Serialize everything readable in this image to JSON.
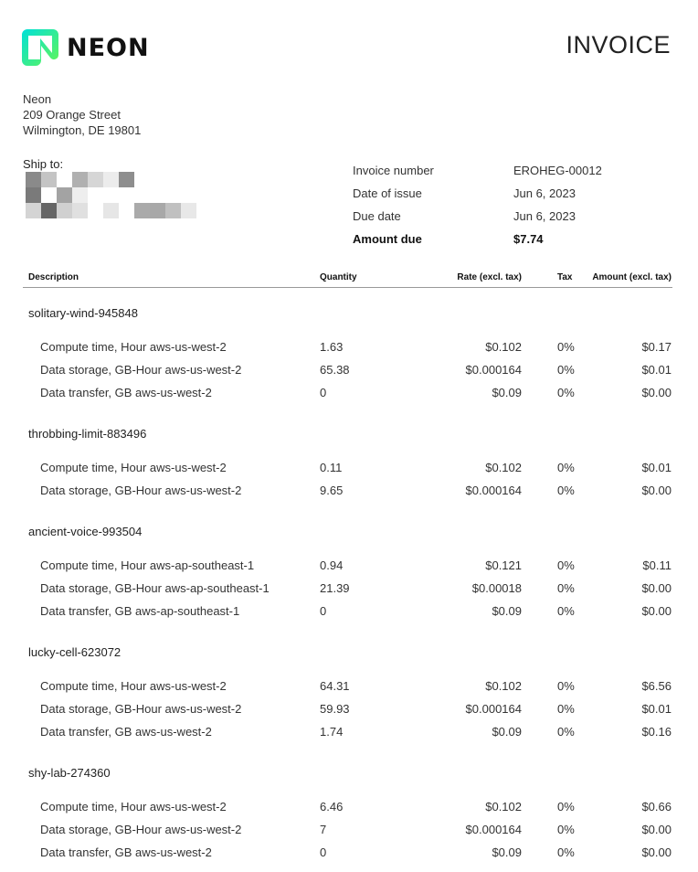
{
  "brand": {
    "name": "NEON",
    "logo_colors": [
      "#00E0D9",
      "#63F655"
    ]
  },
  "title": "INVOICE",
  "from": {
    "lines": [
      "Neon",
      "209 Orange Street",
      "Wilmington, DE 19801"
    ]
  },
  "ship_to": {
    "label": "Ship to:"
  },
  "meta": [
    {
      "label": "Invoice number",
      "value": "EROHEG-00012"
    },
    {
      "label": "Date of issue",
      "value": "Jun 6, 2023"
    },
    {
      "label": "Due date",
      "value": "Jun 6, 2023"
    },
    {
      "label": "Amount due",
      "value": "$7.74"
    }
  ],
  "table": {
    "headers": [
      "Description",
      "Quantity",
      "Rate (excl. tax)",
      "Tax",
      "Amount (excl. tax)"
    ],
    "groups": [
      {
        "name": "solitary-wind-945848",
        "rows": [
          [
            "Compute time, Hour aws-us-west-2",
            "1.63",
            "$0.102",
            "0%",
            "$0.17"
          ],
          [
            "Data storage, GB-Hour aws-us-west-2",
            "65.38",
            "$0.000164",
            "0%",
            "$0.01"
          ],
          [
            "Data transfer, GB aws-us-west-2",
            "0",
            "$0.09",
            "0%",
            "$0.00"
          ]
        ]
      },
      {
        "name": "throbbing-limit-883496",
        "rows": [
          [
            "Compute time, Hour aws-us-west-2",
            "0.11",
            "$0.102",
            "0%",
            "$0.01"
          ],
          [
            "Data storage, GB-Hour aws-us-west-2",
            "9.65",
            "$0.000164",
            "0%",
            "$0.00"
          ]
        ]
      },
      {
        "name": "ancient-voice-993504",
        "rows": [
          [
            "Compute time, Hour aws-ap-southeast-1",
            "0.94",
            "$0.121",
            "0%",
            "$0.11"
          ],
          [
            "Data storage, GB-Hour aws-ap-southeast-1",
            "21.39",
            "$0.00018",
            "0%",
            "$0.00"
          ],
          [
            "Data transfer, GB aws-ap-southeast-1",
            "0",
            "$0.09",
            "0%",
            "$0.00"
          ]
        ]
      },
      {
        "name": "lucky-cell-623072",
        "rows": [
          [
            "Compute time, Hour aws-us-west-2",
            "64.31",
            "$0.102",
            "0%",
            "$6.56"
          ],
          [
            "Data storage, GB-Hour aws-us-west-2",
            "59.93",
            "$0.000164",
            "0%",
            "$0.01"
          ],
          [
            "Data transfer, GB aws-us-west-2",
            "1.74",
            "$0.09",
            "0%",
            "$0.16"
          ]
        ]
      },
      {
        "name": "shy-lab-274360",
        "rows": [
          [
            "Compute time, Hour aws-us-west-2",
            "6.46",
            "$0.102",
            "0%",
            "$0.66"
          ],
          [
            "Data storage, GB-Hour aws-us-west-2",
            "7",
            "$0.000164",
            "0%",
            "$0.00"
          ],
          [
            "Data transfer, GB aws-us-west-2",
            "0",
            "$0.09",
            "0%",
            "$0.00"
          ]
        ]
      }
    ]
  }
}
